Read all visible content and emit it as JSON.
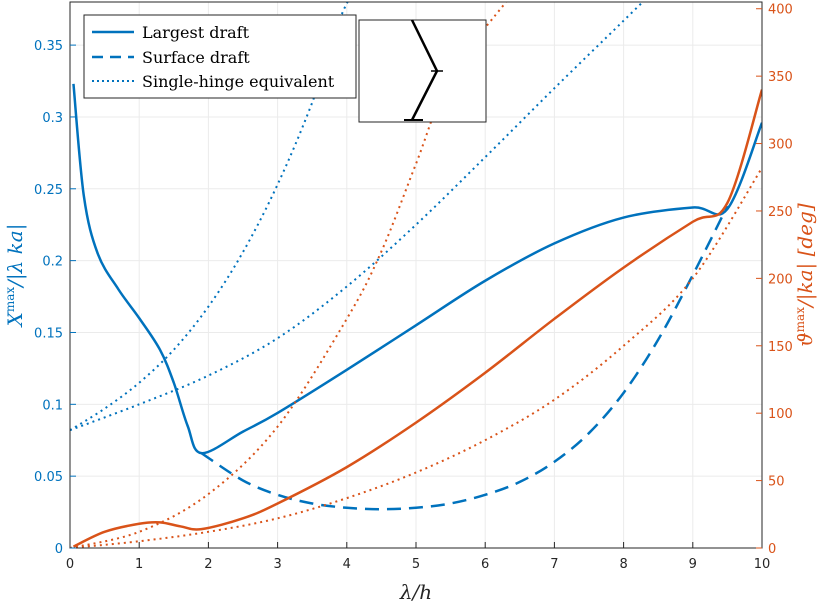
{
  "colors": {
    "blue": "#0072BD",
    "orange": "#D95319",
    "grid": "#ebebeb",
    "axis": "#262626"
  },
  "chart_data": {
    "type": "line",
    "xlabel": "λ/h",
    "ylabel_left": {
      "main": "X",
      "sup": "max",
      "rest": "/|λ ka|"
    },
    "ylabel_right": {
      "main": "ϑ",
      "sup": "max",
      "rest": "/|ka| [deg]"
    },
    "xlim": [
      0,
      10
    ],
    "ylim_left": [
      0,
      0.38
    ],
    "ylim_right": [
      0,
      405
    ],
    "x_ticks": [
      "0",
      "1",
      "2",
      "3",
      "4",
      "5",
      "6",
      "7",
      "8",
      "9",
      "10"
    ],
    "y_left_ticks": [
      "0",
      "0.05",
      "0.1",
      "0.15",
      "0.2",
      "0.25",
      "0.3",
      "0.35"
    ],
    "y_right_ticks": [
      "0",
      "50",
      "100",
      "150",
      "200",
      "250",
      "300",
      "350",
      "400"
    ],
    "grid": true,
    "legend": {
      "placement": "top-left",
      "entries": [
        {
          "label": "Largest draft",
          "style": "solid"
        },
        {
          "label": "Surface draft",
          "style": "dashed"
        },
        {
          "label": "Single-hinge equivalent",
          "style": "dotted"
        }
      ]
    },
    "inset": "hinged-structure-icon",
    "series": [
      {
        "axis": "left",
        "style": "solid",
        "color": "#0072BD",
        "x": [
          0.05,
          0.2,
          0.4,
          0.7,
          1.0,
          1.3,
          1.5,
          1.7,
          1.9,
          2.5,
          3,
          4,
          5,
          6,
          7,
          8,
          9,
          9.5,
          10
        ],
        "y": [
          0.323,
          0.245,
          0.205,
          0.18,
          0.16,
          0.138,
          0.115,
          0.085,
          0.066,
          0.081,
          0.094,
          0.124,
          0.155,
          0.186,
          0.212,
          0.23,
          0.237,
          0.236,
          0.296
        ]
      },
      {
        "axis": "left",
        "style": "dashed",
        "color": "#0072BD",
        "x": [
          1.9,
          2.5,
          3,
          3.5,
          4,
          4.5,
          5,
          5.5,
          6,
          6.5,
          7,
          7.5,
          8,
          8.5,
          9,
          9.5
        ],
        "y": [
          0.066,
          0.047,
          0.037,
          0.031,
          0.028,
          0.027,
          0.028,
          0.031,
          0.037,
          0.046,
          0.06,
          0.08,
          0.108,
          0.145,
          0.19,
          0.238
        ]
      },
      {
        "axis": "left",
        "style": "dotted",
        "color": "#0072BD",
        "x": [
          0,
          1,
          2,
          3,
          4,
          5,
          6,
          7,
          8,
          8.7
        ],
        "y": [
          0.082,
          0.1,
          0.12,
          0.146,
          0.182,
          0.225,
          0.272,
          0.32,
          0.367,
          0.4
        ]
      },
      {
        "axis": "left",
        "style": "dotted",
        "color": "#0072BD",
        "x": [
          0,
          0.5,
          1,
          1.5,
          2,
          2.5,
          3,
          3.5,
          4,
          4.5
        ],
        "y": [
          0.082,
          0.097,
          0.115,
          0.138,
          0.168,
          0.206,
          0.253,
          0.31,
          0.379,
          0.4
        ]
      },
      {
        "axis": "right",
        "style": "solid",
        "color": "#D95319",
        "x": [
          0.05,
          0.5,
          1.0,
          1.3,
          1.6,
          1.9,
          2.5,
          3,
          4,
          5,
          6,
          7,
          8,
          9,
          9.5,
          10
        ],
        "y": [
          1,
          12,
          18,
          19,
          16,
          14,
          22,
          33,
          60,
          93,
          130,
          170,
          208,
          242,
          256,
          340
        ]
      },
      {
        "axis": "right",
        "style": "dotted",
        "color": "#D95319",
        "x": [
          0,
          1,
          2,
          3,
          4,
          5,
          6,
          7,
          8,
          9,
          10
        ],
        "y": [
          0,
          5,
          12,
          22,
          37,
          56,
          80,
          110,
          150,
          200,
          282
        ]
      },
      {
        "axis": "right",
        "style": "dotted",
        "color": "#D95319",
        "x": [
          0,
          1,
          2,
          3,
          4,
          4.5,
          5,
          5.5,
          6.3
        ],
        "y": [
          0,
          12,
          40,
          90,
          170,
          220,
          285,
          350,
          405
        ]
      }
    ]
  }
}
